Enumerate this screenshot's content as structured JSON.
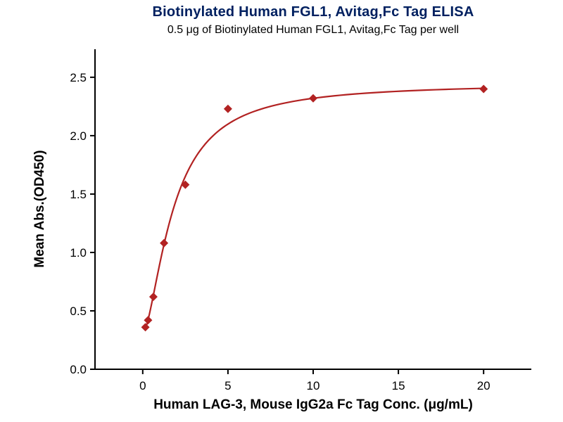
{
  "chart_data": {
    "type": "scatter",
    "title": "Biotinylated Human FGL1, Avitag,Fc Tag ELISA",
    "subtitle": "0.5 μg of Biotinylated Human FGL1, Avitag,Fc Tag per well",
    "xlabel": "Human LAG-3, Mouse IgG2a Fc Tag Conc. (μg/mL)",
    "ylabel": "Mean Abs.(OD450)",
    "xlim": [
      -2.8,
      22.8
    ],
    "ylim": [
      0,
      2.74
    ],
    "xticks": [
      0,
      5,
      10,
      15,
      20
    ],
    "xtick_labels": [
      "0",
      "5",
      "10",
      "15",
      "20"
    ],
    "yticks": [
      0,
      0.5,
      1,
      1.5,
      2,
      2.5
    ],
    "ytick_labels": [
      "0.0",
      "0.5",
      "1.0",
      "1.5",
      "2.0",
      "2.5"
    ],
    "grid": false,
    "legend": "none",
    "marker": "diamond",
    "colors": {
      "series": "#B22222",
      "title_text": "#002060",
      "axis": "#000000"
    },
    "points": [
      {
        "x": 0.156,
        "y": 0.36
      },
      {
        "x": 0.313,
        "y": 0.42
      },
      {
        "x": 0.625,
        "y": 0.62
      },
      {
        "x": 1.25,
        "y": 1.08
      },
      {
        "x": 2.5,
        "y": 1.58
      },
      {
        "x": 5,
        "y": 2.23
      },
      {
        "x": 10,
        "y": 2.32
      },
      {
        "x": 20,
        "y": 2.4
      }
    ],
    "fit_curve": {
      "model": "4PL",
      "a": 0.3,
      "b": 1.6,
      "c": 1.8,
      "d": 2.45,
      "x_start": 0.156,
      "x_end": 20
    }
  }
}
